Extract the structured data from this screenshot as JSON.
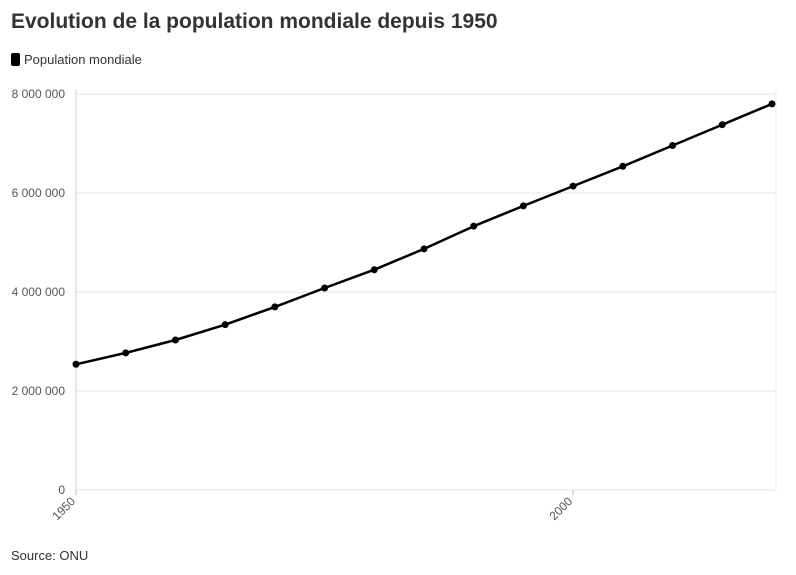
{
  "chart_data": {
    "type": "line",
    "title": "Evolution de la population mondiale depuis 1950",
    "xlabel": "",
    "ylabel": "",
    "legend": {
      "position": "top-left",
      "entries": [
        "Population mondiale"
      ]
    },
    "grid": true,
    "x": [
      1950,
      1955,
      1960,
      1965,
      1970,
      1975,
      1980,
      1985,
      1990,
      1995,
      2000,
      2005,
      2010,
      2015,
      2020
    ],
    "series": [
      {
        "name": "Population mondiale",
        "color": "#000000",
        "values": [
          2540000,
          2770000,
          3030000,
          3340000,
          3700000,
          4080000,
          4450000,
          4870000,
          5330000,
          5740000,
          6140000,
          6540000,
          6960000,
          7380000,
          7800000
        ]
      }
    ],
    "xlim": [
      1950,
      2020
    ],
    "ylim": [
      0,
      8000000
    ],
    "yticks": [
      0,
      2000000,
      4000000,
      6000000,
      8000000
    ],
    "ytick_labels": [
      "0",
      "2 000 000",
      "4 000 000",
      "6 000 000",
      "8 000 000"
    ],
    "xticks": [
      1950,
      2000
    ],
    "xtick_labels": [
      "1950",
      "2000"
    ]
  },
  "source": "Source: ONU"
}
